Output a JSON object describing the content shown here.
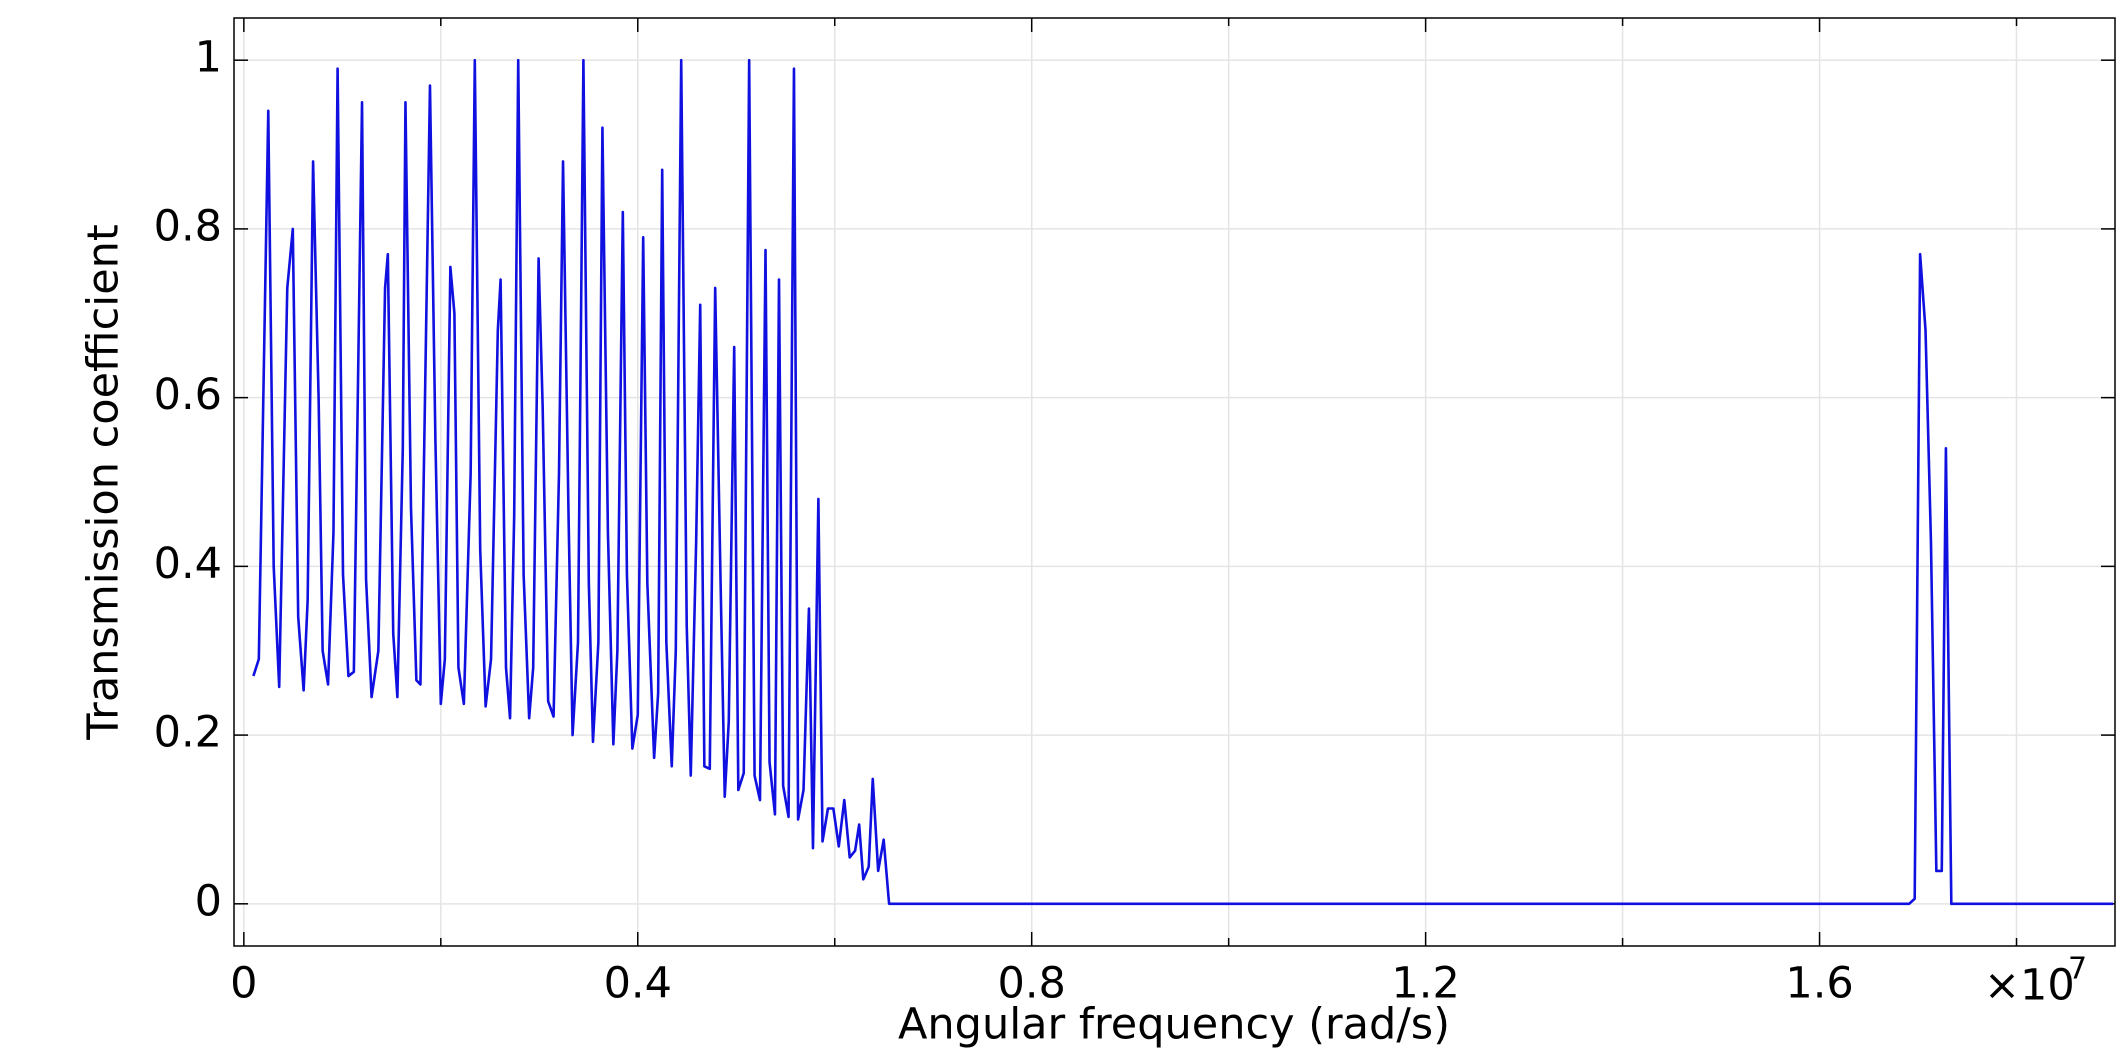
{
  "chart_data": {
    "type": "line",
    "x_label": "Angular frequency (rad/s)",
    "y_label": "Transmission coefficient",
    "x_multiplier": "×10",
    "x_exponent": "7",
    "color": "#1010e0",
    "grid": true,
    "xlim": [
      -0.01,
      1.9
    ],
    "ylim": [
      -0.05,
      1.05
    ],
    "xticks": [
      0,
      0.4,
      0.8,
      1.2,
      1.6
    ],
    "x_minor_ticks": [
      0.2,
      0.6,
      1.0,
      1.4,
      1.8
    ],
    "yticks": [
      0,
      0.2,
      0.4,
      0.6,
      0.8,
      1
    ],
    "x": [
      0.0097,
      0.0152,
      0.0248,
      0.0303,
      0.0359,
      0.0441,
      0.0497,
      0.0552,
      0.0607,
      0.0648,
      0.0703,
      0.0759,
      0.08,
      0.0855,
      0.091,
      0.0952,
      0.1007,
      0.1062,
      0.1117,
      0.12,
      0.1241,
      0.1297,
      0.1366,
      0.1434,
      0.1462,
      0.1517,
      0.1559,
      0.1614,
      0.1641,
      0.1697,
      0.1752,
      0.1793,
      0.189,
      0.1945,
      0.2,
      0.2041,
      0.2097,
      0.2138,
      0.2179,
      0.2234,
      0.2303,
      0.2345,
      0.24,
      0.2455,
      0.251,
      0.2579,
      0.2607,
      0.2662,
      0.2703,
      0.2745,
      0.2786,
      0.2841,
      0.2897,
      0.2938,
      0.2993,
      0.3034,
      0.309,
      0.3145,
      0.32,
      0.3241,
      0.3297,
      0.3338,
      0.3393,
      0.3448,
      0.3503,
      0.3545,
      0.36,
      0.3641,
      0.3697,
      0.3752,
      0.3793,
      0.3848,
      0.389,
      0.3945,
      0.4,
      0.4055,
      0.4097,
      0.4166,
      0.4207,
      0.4248,
      0.429,
      0.4345,
      0.4386,
      0.4441,
      0.4497,
      0.4538,
      0.4593,
      0.4634,
      0.4676,
      0.4731,
      0.4786,
      0.4841,
      0.4883,
      0.4924,
      0.4979,
      0.5021,
      0.5076,
      0.5131,
      0.5186,
      0.5241,
      0.5297,
      0.5338,
      0.5393,
      0.5434,
      0.5476,
      0.5531,
      0.5586,
      0.5628,
      0.5683,
      0.5738,
      0.5779,
      0.5834,
      0.5876,
      0.5931,
      0.5986,
      0.6041,
      0.6097,
      0.6152,
      0.6207,
      0.6248,
      0.629,
      0.6345,
      0.6386,
      0.6441,
      0.6497,
      0.6552,
      1.691,
      1.6966,
      1.7021,
      1.7076,
      1.7131,
      1.7186,
      1.7241,
      1.7283,
      1.7338,
      1.898
    ],
    "values": [
      0.27,
      0.29,
      0.94,
      0.4,
      0.257,
      0.73,
      0.8,
      0.34,
      0.253,
      0.36,
      0.88,
      0.6,
      0.3,
      0.26,
      0.44,
      0.99,
      0.39,
      0.27,
      0.275,
      0.95,
      0.385,
      0.245,
      0.3,
      0.73,
      0.77,
      0.32,
      0.245,
      0.54,
      0.95,
      0.47,
      0.265,
      0.26,
      0.97,
      0.55,
      0.237,
      0.29,
      0.755,
      0.7,
      0.28,
      0.237,
      0.51,
      1.0,
      0.42,
      0.234,
      0.29,
      0.68,
      0.74,
      0.28,
      0.22,
      0.46,
      1.0,
      0.39,
      0.22,
      0.28,
      0.765,
      0.59,
      0.24,
      0.222,
      0.51,
      0.88,
      0.46,
      0.2,
      0.31,
      1.0,
      0.38,
      0.192,
      0.31,
      0.92,
      0.44,
      0.189,
      0.3,
      0.82,
      0.39,
      0.184,
      0.224,
      0.79,
      0.38,
      0.173,
      0.25,
      0.87,
      0.31,
      0.163,
      0.3,
      1.0,
      0.33,
      0.152,
      0.43,
      0.71,
      0.163,
      0.16,
      0.73,
      0.38,
      0.127,
      0.216,
      0.66,
      0.135,
      0.155,
      1.0,
      0.152,
      0.123,
      0.775,
      0.168,
      0.106,
      0.74,
      0.14,
      0.103,
      0.99,
      0.1,
      0.135,
      0.35,
      0.066,
      0.48,
      0.074,
      0.113,
      0.113,
      0.068,
      0.123,
      0.055,
      0.063,
      0.094,
      0.029,
      0.044,
      0.148,
      0.039,
      0.076,
      0,
      0,
      0.006,
      0.77,
      0.68,
      0.43,
      0.039,
      0.039,
      0.54,
      0,
      0
    ]
  }
}
